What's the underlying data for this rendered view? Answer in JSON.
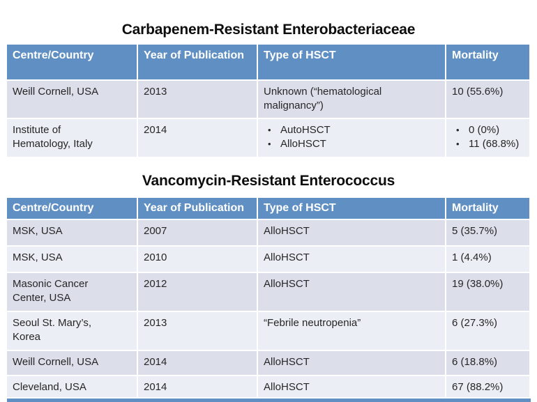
{
  "glyphs": {
    "bullet": "•"
  },
  "colors": {
    "header_bg": "#6090C3",
    "band_dark": "#DCDFEA",
    "band_light": "#ECEEF5",
    "body_text": "#262626",
    "header_text": "#FFFFFF",
    "title_text": "#0D0D0D",
    "page_bg": "#FFFFFF"
  },
  "tables": [
    {
      "title": "Carbapenem-Resistant Enterobacteriaceae",
      "columns": [
        "Centre/Country",
        "Year of Publication",
        "Type of HSCT",
        "Mortality"
      ],
      "rows": [
        {
          "cells": [
            {
              "lines": [
                "Weill Cornell, USA"
              ]
            },
            {
              "lines": [
                "2013"
              ]
            },
            {
              "lines": [
                "Unknown (“hematological",
                "malignancy”)"
              ]
            },
            {
              "lines": [
                "10 (55.6%)"
              ]
            }
          ]
        },
        {
          "cells": [
            {
              "lines": [
                "Institute of",
                "Hematology, Italy"
              ]
            },
            {
              "lines": [
                "2014"
              ]
            },
            {
              "bullets": [
                "AutoHSCT",
                "AlloHSCT"
              ]
            },
            {
              "bullets": [
                "0 (0%)",
                "11 (68.8%)"
              ]
            }
          ]
        }
      ]
    },
    {
      "title": "Vancomycin-Resistant Enterococcus",
      "columns": [
        "Centre/Country",
        "Year of Publication",
        "Type of HSCT",
        "Mortality"
      ],
      "rows": [
        {
          "cells": [
            {
              "lines": [
                "MSK, USA"
              ]
            },
            {
              "lines": [
                "2007"
              ]
            },
            {
              "lines": [
                "AlloHSCT"
              ]
            },
            {
              "lines": [
                "5 (35.7%)"
              ]
            }
          ]
        },
        {
          "cells": [
            {
              "lines": [
                "MSK, USA"
              ]
            },
            {
              "lines": [
                "2010"
              ]
            },
            {
              "lines": [
                "AlloHSCT"
              ]
            },
            {
              "lines": [
                "1 (4.4%)"
              ]
            }
          ]
        },
        {
          "cells": [
            {
              "lines": [
                "Masonic Cancer",
                "Center, USA"
              ]
            },
            {
              "lines": [
                "2012"
              ]
            },
            {
              "lines": [
                "AlloHSCT"
              ]
            },
            {
              "lines": [
                "19 (38.0%)"
              ]
            }
          ]
        },
        {
          "cells": [
            {
              "lines": [
                "Seoul St. Mary’s,",
                "Korea"
              ]
            },
            {
              "lines": [
                "2013"
              ]
            },
            {
              "lines": [
                "“Febrile neutropenia”"
              ]
            },
            {
              "lines": [
                "6 (27.3%)"
              ]
            }
          ]
        },
        {
          "cells": [
            {
              "lines": [
                "Weill Cornell, USA"
              ]
            },
            {
              "lines": [
                "2014"
              ]
            },
            {
              "lines": [
                "AlloHSCT"
              ]
            },
            {
              "lines": [
                "6 (18.8%)"
              ]
            }
          ]
        },
        {
          "cells": [
            {
              "lines": [
                "Cleveland, USA"
              ]
            },
            {
              "lines": [
                "2014"
              ]
            },
            {
              "lines": [
                "AlloHSCT"
              ]
            },
            {
              "lines": [
                "67 (88.2%)"
              ]
            }
          ]
        }
      ]
    }
  ]
}
